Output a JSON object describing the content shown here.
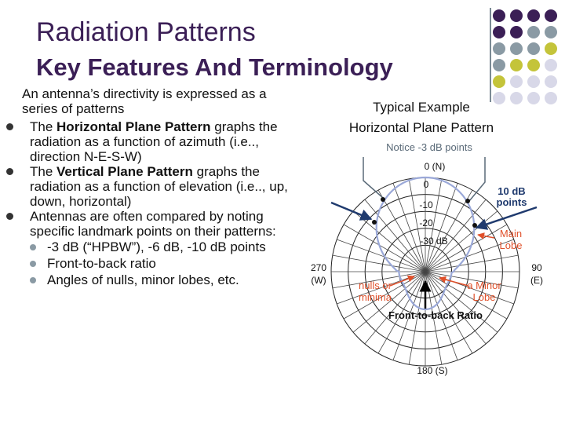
{
  "header": {
    "title": "Radiation Patterns",
    "subtitle": "Key Features And Terminology"
  },
  "intro": "An antenna’s directivity is expressed as a series of patterns",
  "bullets": [
    {
      "pre": "The ",
      "bold": "Horizontal Plane Pattern",
      "post": " graphs the radiation as a function of azimuth (i.e.., direction N-E-S-W)"
    },
    {
      "pre": "The ",
      "bold": "Vertical Plane Pattern",
      "post": " graphs the radiation as a function of elevation (i.e.., up, down, horizontal)"
    },
    {
      "pre": "",
      "bold": "",
      "post": "Antennas are often compared by noting specific landmark points on their patterns:"
    }
  ],
  "sub_bullets": [
    "-3 dB (“HPBW”), -6 dB, -10 dB points",
    "Front-to-back ratio",
    "Angles of nulls, minor lobes, etc."
  ],
  "diagram": {
    "heading_line1": "Typical Example",
    "heading_line2": "Horizontal Plane Pattern",
    "notice": "Notice -3 dB points",
    "north": "0 (N)",
    "south": "180 (S)",
    "west_deg": "270",
    "west_dir": "(W)",
    "east_deg": "90",
    "east_dir": "(E)",
    "ring0": "0",
    "ring10": "-10",
    "ring20": "-20",
    "ring30": "-30 dB",
    "ten_db_line1": "10 dB",
    "ten_db_line2": "points",
    "main_lobe_line1": "Main",
    "main_lobe_line2": "Lobe",
    "nulls_line1": "nulls or",
    "nulls_line2": "minima",
    "minor_lobe_line1": "a Minor",
    "minor_lobe_line2": "Lobe",
    "front_back": "Front-to-back Ratio",
    "colors": {
      "accent_orange": "#e0502a",
      "arrow_blue": "#1f3a6e",
      "pattern": "#9aa8d8",
      "title": "#3b1f56"
    }
  },
  "decor_colors": [
    "#3b1f56",
    "#8a9aa4",
    "#c4c43a",
    "#d8d8e8"
  ]
}
